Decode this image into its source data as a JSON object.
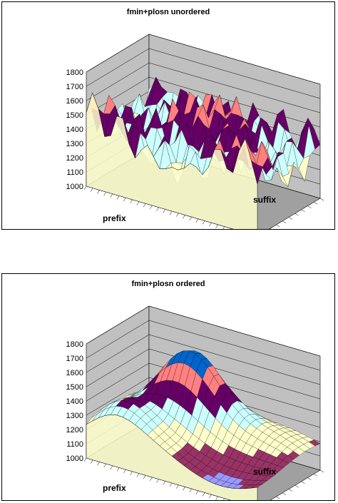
{
  "chart_data": [
    {
      "type": "surface",
      "title": "fmin+plosn unordered",
      "xlabel": "prefix",
      "ylabel": "suffix",
      "zlim": [
        1000,
        1800
      ],
      "z_ticks": [
        "1000",
        "1100",
        "1200",
        "1300",
        "1400",
        "1500",
        "1600",
        "1700",
        "1800"
      ],
      "band_colors": [
        "#9999ff",
        "#993366",
        "#ffffcc",
        "#ccffff",
        "#660066",
        "#ff8080",
        "#0066cc"
      ],
      "floor_color": "#a0a0a0",
      "wall_color": "#c0c0c0",
      "grid": true,
      "pattern": "unordered"
    },
    {
      "type": "surface",
      "title": "fmin+plosn ordered",
      "xlabel": "prefix",
      "ylabel": "suffix",
      "zlim": [
        1000,
        1800
      ],
      "z_ticks": [
        "1000",
        "1100",
        "1200",
        "1300",
        "1400",
        "1500",
        "1600",
        "1700",
        "1800"
      ],
      "band_colors": [
        "#9999ff",
        "#993366",
        "#ffffcc",
        "#ccffff",
        "#660066",
        "#ff8080",
        "#0066cc"
      ],
      "floor_color": "#a0a0a0",
      "wall_color": "#c0c0c0",
      "grid": true,
      "pattern": "ordered"
    }
  ]
}
